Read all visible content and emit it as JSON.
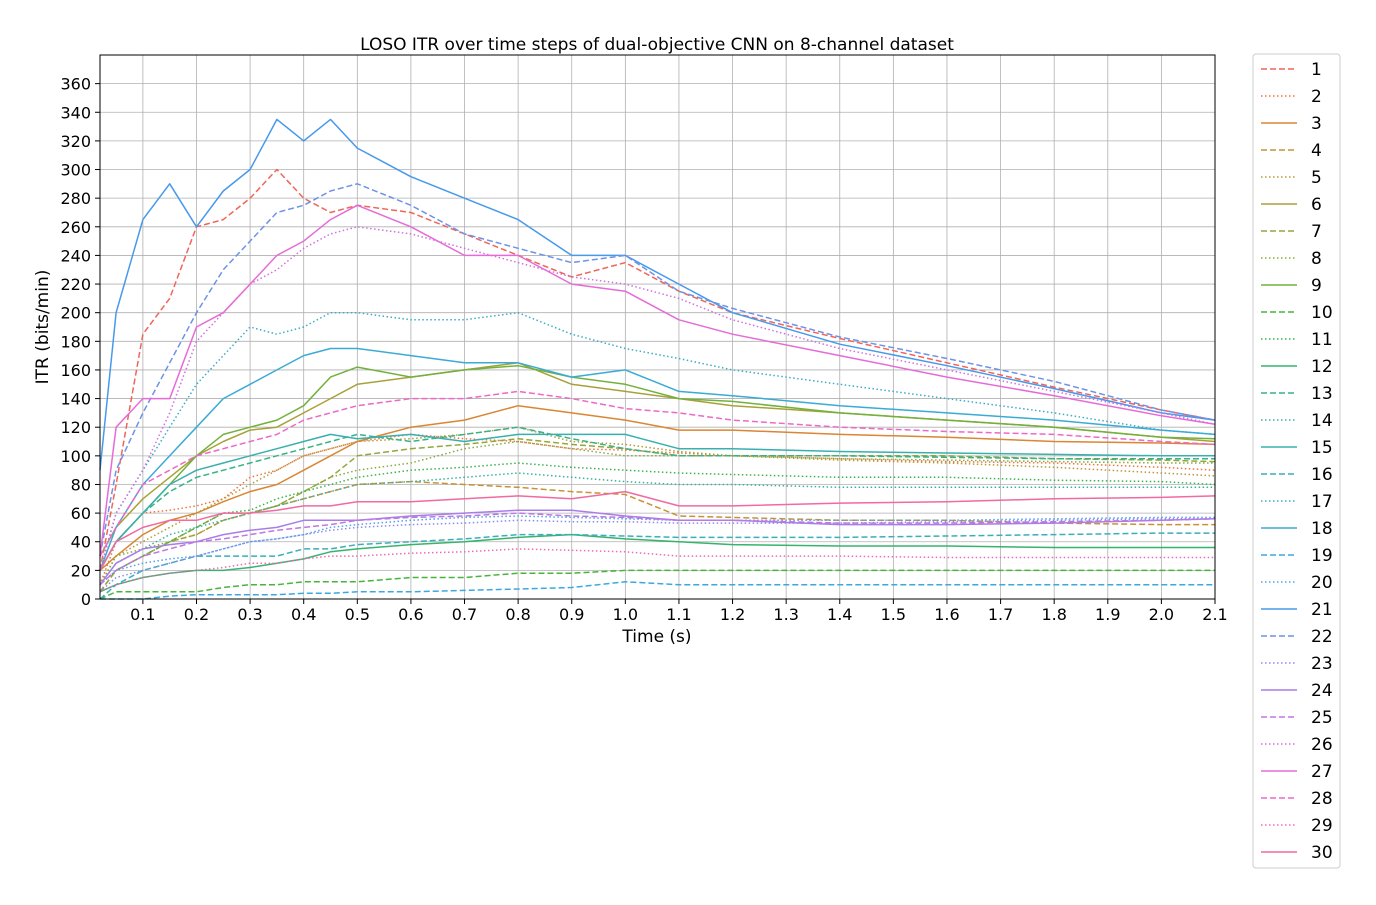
{
  "chart_data": {
    "type": "line",
    "title": "LOSO ITR over time steps of dual-objective CNN on 8-channel dataset",
    "xlabel": "Time (s)",
    "ylabel": "ITR (bits/min)",
    "xlim": [
      0.02,
      2.1
    ],
    "ylim": [
      0,
      380
    ],
    "x_ticks": [
      0.1,
      0.2,
      0.3,
      0.4,
      0.5,
      0.6,
      0.7,
      0.8,
      0.9,
      1.0,
      1.1,
      1.2,
      1.3,
      1.4,
      1.5,
      1.6,
      1.7,
      1.8,
      1.9,
      2.0,
      2.1
    ],
    "x_tick_labels": [
      "0.1",
      "0.2",
      "0.3",
      "0.4",
      "0.5",
      "0.6",
      "0.7",
      "0.8",
      "0.9",
      "1.0",
      "1.1",
      "1.2",
      "1.3",
      "1.4",
      "1.5",
      "1.6",
      "1.7",
      "1.8",
      "1.9",
      "2.0",
      "2.1"
    ],
    "y_ticks": [
      0,
      20,
      40,
      60,
      80,
      100,
      120,
      140,
      160,
      180,
      200,
      220,
      240,
      260,
      280,
      300,
      320,
      340,
      360
    ],
    "y_tick_labels": [
      "0",
      "20",
      "40",
      "60",
      "80",
      "100",
      "120",
      "140",
      "160",
      "180",
      "200",
      "220",
      "240",
      "260",
      "280",
      "300",
      "320",
      "340",
      "360"
    ],
    "grid": true,
    "legend_position": "outside-right",
    "x": [
      0.02,
      0.05,
      0.1,
      0.15,
      0.2,
      0.25,
      0.3,
      0.35,
      0.4,
      0.45,
      0.5,
      0.6,
      0.7,
      0.8,
      0.9,
      1.0,
      1.1,
      1.2,
      1.4,
      1.6,
      1.8,
      2.0,
      2.1
    ],
    "series": [
      {
        "name": "1",
        "color": "#f0655a",
        "dash": "dashed",
        "values": [
          20,
          80,
          185,
          210,
          260,
          265,
          280,
          300,
          280,
          270,
          275,
          270,
          255,
          240,
          225,
          235,
          215,
          200,
          182,
          165,
          148,
          132,
          125
        ]
      },
      {
        "name": "2",
        "color": "#ee7340",
        "dash": "dotted",
        "values": [
          10,
          40,
          60,
          62,
          65,
          70,
          85,
          90,
          100,
          105,
          110,
          115,
          112,
          110,
          105,
          104,
          102,
          100,
          98,
          96,
          95,
          92,
          90
        ]
      },
      {
        "name": "3",
        "color": "#da8632",
        "dash": "solid",
        "values": [
          20,
          30,
          45,
          55,
          60,
          68,
          75,
          80,
          90,
          100,
          110,
          120,
          125,
          135,
          130,
          125,
          118,
          118,
          115,
          113,
          110,
          109,
          108
        ]
      },
      {
        "name": "4",
        "color": "#c69335",
        "dash": "dashed",
        "values": [
          5,
          20,
          30,
          40,
          45,
          55,
          60,
          65,
          70,
          75,
          80,
          82,
          80,
          78,
          75,
          73,
          58,
          57,
          55,
          55,
          53,
          52,
          52
        ]
      },
      {
        "name": "5",
        "color": "#b59a36",
        "dash": "dotted",
        "values": [
          10,
          30,
          40,
          50,
          60,
          70,
          80,
          90,
          100,
          105,
          110,
          112,
          115,
          120,
          110,
          108,
          103,
          100,
          97,
          95,
          92,
          88,
          86
        ]
      },
      {
        "name": "6",
        "color": "#a8a139",
        "dash": "solid",
        "values": [
          30,
          50,
          70,
          85,
          100,
          110,
          118,
          120,
          130,
          140,
          150,
          155,
          160,
          165,
          150,
          145,
          140,
          135,
          130,
          125,
          120,
          113,
          110
        ]
      },
      {
        "name": "7",
        "color": "#94a73a",
        "dash": "dashed",
        "values": [
          5,
          20,
          30,
          40,
          50,
          60,
          60,
          65,
          75,
          85,
          100,
          105,
          108,
          112,
          108,
          105,
          100,
          100,
          100,
          100,
          98,
          97,
          96
        ]
      },
      {
        "name": "8",
        "color": "#86ab3a",
        "dash": "dotted",
        "values": [
          10,
          30,
          35,
          40,
          45,
          55,
          60,
          65,
          75,
          85,
          90,
          95,
          105,
          110,
          105,
          100,
          100,
          100,
          98,
          97,
          96,
          95,
          95
        ]
      },
      {
        "name": "9",
        "color": "#72b13c",
        "dash": "solid",
        "values": [
          20,
          40,
          60,
          80,
          100,
          115,
          120,
          125,
          135,
          155,
          162,
          155,
          160,
          163,
          155,
          150,
          140,
          138,
          130,
          125,
          120,
          113,
          112
        ]
      },
      {
        "name": "10",
        "color": "#46b53a",
        "dash": "dashed",
        "values": [
          0,
          5,
          5,
          5,
          5,
          8,
          10,
          10,
          12,
          12,
          12,
          15,
          15,
          18,
          18,
          20,
          20,
          20,
          20,
          20,
          20,
          20,
          20
        ]
      },
      {
        "name": "11",
        "color": "#39b44d",
        "dash": "dotted",
        "values": [
          10,
          20,
          30,
          40,
          50,
          60,
          62,
          70,
          75,
          80,
          85,
          90,
          92,
          95,
          92,
          90,
          88,
          87,
          85,
          85,
          83,
          82,
          80
        ]
      },
      {
        "name": "12",
        "color": "#36b36d",
        "dash": "solid",
        "values": [
          5,
          10,
          15,
          18,
          20,
          20,
          22,
          25,
          28,
          33,
          35,
          38,
          40,
          43,
          45,
          42,
          40,
          38,
          37,
          37,
          36,
          36,
          36
        ]
      },
      {
        "name": "13",
        "color": "#37b289",
        "dash": "dashed",
        "values": [
          20,
          40,
          60,
          75,
          85,
          90,
          95,
          100,
          105,
          110,
          115,
          110,
          115,
          120,
          112,
          105,
          100,
          100,
          100,
          99,
          98,
          98,
          98
        ]
      },
      {
        "name": "14",
        "color": "#38b19e",
        "dash": "dotted",
        "values": [
          10,
          25,
          35,
          45,
          50,
          55,
          60,
          65,
          70,
          75,
          80,
          82,
          85,
          88,
          85,
          82,
          80,
          80,
          78,
          78,
          78,
          78,
          78
        ]
      },
      {
        "name": "15",
        "color": "#38b0ad",
        "dash": "solid",
        "values": [
          20,
          40,
          60,
          80,
          90,
          95,
          100,
          105,
          110,
          115,
          112,
          115,
          110,
          115,
          115,
          115,
          105,
          105,
          103,
          102,
          101,
          100,
          100
        ]
      },
      {
        "name": "16",
        "color": "#39afbb",
        "dash": "dashed",
        "values": [
          0,
          10,
          20,
          25,
          30,
          30,
          30,
          30,
          35,
          35,
          38,
          40,
          42,
          45,
          45,
          44,
          43,
          43,
          43,
          44,
          45,
          46,
          46
        ]
      },
      {
        "name": "17",
        "color": "#3aadc8",
        "dash": "dotted",
        "values": [
          20,
          60,
          90,
          120,
          150,
          170,
          190,
          185,
          190,
          200,
          200,
          195,
          195,
          200,
          185,
          175,
          168,
          160,
          150,
          140,
          130,
          118,
          115
        ]
      },
      {
        "name": "18",
        "color": "#3aabd4",
        "dash": "solid",
        "values": [
          20,
          50,
          80,
          100,
          120,
          140,
          150,
          160,
          170,
          175,
          175,
          170,
          165,
          165,
          155,
          160,
          145,
          142,
          135,
          130,
          125,
          118,
          115
        ]
      },
      {
        "name": "19",
        "color": "#3ca8e0",
        "dash": "dashed",
        "values": [
          0,
          0,
          0,
          2,
          3,
          3,
          3,
          3,
          4,
          4,
          5,
          5,
          6,
          7,
          8,
          12,
          10,
          10,
          10,
          10,
          10,
          10,
          10
        ]
      },
      {
        "name": "20",
        "color": "#4fa3ec",
        "dash": "dotted",
        "values": [
          10,
          20,
          25,
          28,
          30,
          35,
          40,
          42,
          45,
          50,
          52,
          55,
          57,
          58,
          57,
          56,
          55,
          55,
          55,
          55,
          56,
          57,
          57
        ]
      },
      {
        "name": "21",
        "color": "#4799eb",
        "dash": "solid",
        "values": [
          90,
          200,
          265,
          290,
          260,
          285,
          300,
          335,
          320,
          335,
          315,
          295,
          280,
          265,
          240,
          240,
          220,
          200,
          178,
          163,
          147,
          130,
          125
        ]
      },
      {
        "name": "22",
        "color": "#6e92e8",
        "dash": "dashed",
        "values": [
          30,
          90,
          130,
          165,
          200,
          230,
          250,
          270,
          275,
          285,
          290,
          275,
          255,
          245,
          235,
          240,
          215,
          203,
          183,
          168,
          152,
          132,
          125
        ]
      },
      {
        "name": "23",
        "color": "#8a8cec",
        "dash": "dotted",
        "values": [
          5,
          15,
          20,
          25,
          30,
          35,
          40,
          42,
          45,
          48,
          50,
          52,
          53,
          55,
          54,
          54,
          53,
          53,
          53,
          54,
          55,
          56,
          56
        ]
      },
      {
        "name": "24",
        "color": "#a97de9",
        "dash": "solid",
        "values": [
          10,
          25,
          35,
          38,
          40,
          45,
          48,
          50,
          55,
          55,
          55,
          58,
          60,
          62,
          62,
          58,
          55,
          55,
          52,
          52,
          53,
          55,
          56
        ]
      },
      {
        "name": "25",
        "color": "#c076e6",
        "dash": "dashed",
        "values": [
          10,
          20,
          30,
          35,
          40,
          42,
          45,
          48,
          50,
          52,
          55,
          57,
          58,
          60,
          58,
          57,
          55,
          55,
          53,
          53,
          54,
          55,
          56
        ]
      },
      {
        "name": "26",
        "color": "#d26fe0",
        "dash": "dotted",
        "values": [
          20,
          60,
          90,
          130,
          180,
          200,
          220,
          230,
          245,
          255,
          260,
          255,
          245,
          235,
          225,
          220,
          210,
          195,
          175,
          160,
          145,
          130,
          122
        ]
      },
      {
        "name": "27",
        "color": "#e66bd7",
        "dash": "solid",
        "values": [
          30,
          120,
          140,
          140,
          190,
          200,
          220,
          240,
          250,
          265,
          275,
          260,
          240,
          240,
          220,
          215,
          195,
          185,
          170,
          155,
          142,
          128,
          122
        ]
      },
      {
        "name": "28",
        "color": "#ee68c8",
        "dash": "dashed",
        "values": [
          30,
          50,
          80,
          90,
          100,
          105,
          110,
          115,
          125,
          130,
          135,
          140,
          140,
          145,
          140,
          133,
          130,
          125,
          120,
          117,
          115,
          110,
          108
        ]
      },
      {
        "name": "29",
        "color": "#f069b6",
        "dash": "dotted",
        "values": [
          5,
          10,
          15,
          18,
          20,
          22,
          25,
          25,
          28,
          30,
          30,
          32,
          33,
          35,
          34,
          33,
          30,
          30,
          30,
          29,
          29,
          29,
          29
        ]
      },
      {
        "name": "30",
        "color": "#f16aa0",
        "dash": "solid",
        "values": [
          20,
          40,
          50,
          55,
          55,
          60,
          60,
          62,
          65,
          65,
          68,
          68,
          70,
          72,
          70,
          75,
          65,
          65,
          67,
          68,
          70,
          71,
          72
        ]
      }
    ]
  }
}
